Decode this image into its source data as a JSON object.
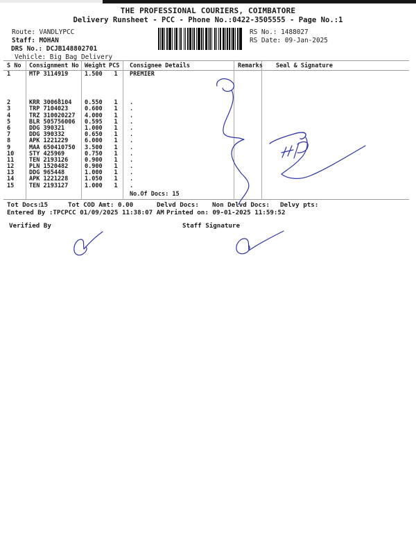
{
  "header": {
    "title": "THE PROFESSIONAL COURIERS, COIMBATORE",
    "subtitle": "Delivery Runsheet - PCC - Phone No.:0422-3505555 - Page No.:1",
    "route_line": "Route: VANDLYPCC",
    "staff_line": "Staff: MOHAN",
    "drs_line": "DRS No.: DCJB148802701",
    "vehicle_line": "Vehicle: Big Bag Delivery",
    "rs_no_line": "RS No.: 1488027",
    "rs_date_line": "RS Date: 09-Jan-2025",
    "barcode": "rs-number-barcode"
  },
  "table": {
    "headers": {
      "s_no": "S No",
      "consignment_no": "Consignment No",
      "weight": "Weight",
      "pcs": "PCS",
      "consignee": "Consignee Details",
      "remarks": "Remarks",
      "seal": "Seal & Signature"
    },
    "rows": [
      {
        "s_no": "1",
        "consignment_no": "MTP 3114919",
        "weight": "1.500",
        "pcs": "1",
        "consignee": "PREMIER"
      },
      {
        "s_no": "2",
        "consignment_no": "KRR 30068104",
        "weight": "0.550",
        "pcs": "1",
        "consignee": "."
      },
      {
        "s_no": "3",
        "consignment_no": "TRP 7104023",
        "weight": "0.600",
        "pcs": "1",
        "consignee": "."
      },
      {
        "s_no": "4",
        "consignment_no": "TRZ 310020227",
        "weight": "4.000",
        "pcs": "1",
        "consignee": "."
      },
      {
        "s_no": "5",
        "consignment_no": "BLR 505756006",
        "weight": "0.595",
        "pcs": "1",
        "consignee": "."
      },
      {
        "s_no": "6",
        "consignment_no": "DDG 390321",
        "weight": "1.000",
        "pcs": "1",
        "consignee": "."
      },
      {
        "s_no": "7",
        "consignment_no": "DDG 390332",
        "weight": "0.650",
        "pcs": "1",
        "consignee": "."
      },
      {
        "s_no": "8",
        "consignment_no": "APK 1221229",
        "weight": "6.000",
        "pcs": "1",
        "consignee": "."
      },
      {
        "s_no": "9",
        "consignment_no": "MAA 650410750",
        "weight": "3.500",
        "pcs": "1",
        "consignee": "."
      },
      {
        "s_no": "10",
        "consignment_no": "STY 425969",
        "weight": "0.750",
        "pcs": "1",
        "consignee": "."
      },
      {
        "s_no": "11",
        "consignment_no": "TEN 2193126",
        "weight": "0.900",
        "pcs": "1",
        "consignee": "."
      },
      {
        "s_no": "12",
        "consignment_no": "PLN 1520482",
        "weight": "0.900",
        "pcs": "1",
        "consignee": "."
      },
      {
        "s_no": "13",
        "consignment_no": "DDG 965448",
        "weight": "1.000",
        "pcs": "1",
        "consignee": "."
      },
      {
        "s_no": "14",
        "consignment_no": "APK 1221228",
        "weight": "1.050",
        "pcs": "1",
        "consignee": "."
      },
      {
        "s_no": "15",
        "consignment_no": "TEN 2193127",
        "weight": "1.000",
        "pcs": "1",
        "consignee": "."
      }
    ],
    "no_of_docs": "No.Of Docs: 15"
  },
  "totals": {
    "tot_docs_label": "Tot Docs:",
    "tot_docs_value": "15",
    "tot_cod_label": "Tot COD Amt:",
    "tot_cod_value": "0.00",
    "delvd_label": "Delvd Docs:",
    "non_delvd_label": "Non Delvd Docs:",
    "delvy_label": "Delvy pts:"
  },
  "footer": {
    "entered_line": "Entered By :TPCPCC 01/09/2025 11:38:07 AM",
    "printed_line": "Printed on: 09-01-2025 11:59:52",
    "verified_by_label": "Verified By",
    "staff_signature_label": "Staff Signature"
  },
  "colors": {
    "ink": "#1a1a1a",
    "pen_blue": "#2e35a5",
    "rule_gray": "#9b9b9b"
  }
}
